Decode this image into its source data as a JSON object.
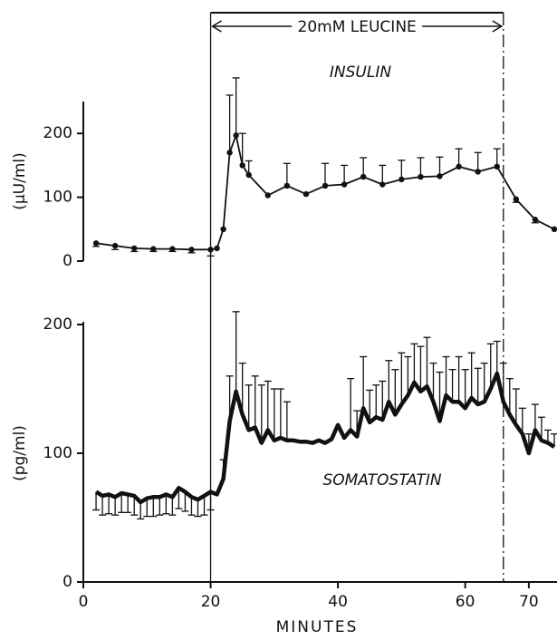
{
  "chart_data": [
    {
      "type": "line",
      "title": "INSULIN",
      "y_label": "(μU/ml)",
      "color": "#111",
      "line_width": 1.8,
      "markers": true,
      "annotation": {
        "text": "20mM LEUCINE",
        "xrange": [
          20,
          66
        ]
      },
      "xlim": [
        0,
        74
      ],
      "ylim": [
        0,
        250
      ],
      "yticks": [
        0,
        100,
        200
      ],
      "x": [
        2,
        5,
        8,
        11,
        14,
        17,
        20,
        21,
        22,
        23,
        24,
        25,
        26,
        29,
        32,
        35,
        38,
        41,
        44,
        47,
        50,
        53,
        56,
        59,
        62,
        65,
        68,
        71,
        74
      ],
      "values": [
        28,
        24,
        20,
        19,
        19,
        18,
        18,
        20,
        50,
        170,
        197,
        150,
        135,
        103,
        118,
        105,
        118,
        120,
        132,
        120,
        128,
        132,
        133,
        148,
        140,
        148,
        97,
        65,
        50
      ],
      "err_plus": [
        null,
        null,
        null,
        null,
        null,
        null,
        null,
        null,
        null,
        90,
        90,
        50,
        22,
        null,
        35,
        null,
        35,
        30,
        30,
        30,
        30,
        30,
        30,
        28,
        30,
        28,
        null,
        null,
        null
      ],
      "err_minus": [
        5,
        6,
        5,
        4,
        4,
        5,
        10,
        null,
        null,
        null,
        null,
        null,
        null,
        null,
        null,
        null,
        null,
        null,
        null,
        null,
        null,
        null,
        null,
        null,
        null,
        null,
        5,
        5,
        null
      ]
    },
    {
      "type": "line",
      "title": "SOMATOSTATIN",
      "y_label": "(pg/ml)",
      "x_label": "MINUTES",
      "color": "#111",
      "line_width": 4.5,
      "markers": false,
      "xlim": [
        0,
        74
      ],
      "ylim": [
        0,
        200
      ],
      "yticks": [
        0,
        100,
        200
      ],
      "xticks": [
        0,
        20,
        40,
        60,
        70
      ],
      "x": [
        2,
        3,
        4,
        5,
        6,
        7,
        8,
        9,
        10,
        11,
        12,
        13,
        14,
        15,
        16,
        17,
        18,
        19,
        20,
        21,
        22,
        23,
        24,
        25,
        26,
        27,
        28,
        29,
        30,
        31,
        32,
        33,
        34,
        35,
        36,
        37,
        38,
        39,
        40,
        41,
        42,
        43,
        44,
        45,
        46,
        47,
        48,
        49,
        50,
        51,
        52,
        53,
        54,
        55,
        56,
        57,
        58,
        59,
        60,
        61,
        62,
        63,
        64,
        65,
        66,
        67,
        68,
        69,
        70,
        71,
        72,
        73,
        74
      ],
      "values": [
        70,
        67,
        68,
        66,
        69,
        68,
        67,
        62,
        65,
        66,
        66,
        68,
        66,
        73,
        70,
        66,
        64,
        67,
        70,
        68,
        80,
        125,
        148,
        130,
        118,
        120,
        108,
        118,
        110,
        112,
        110,
        110,
        109,
        109,
        108,
        110,
        108,
        111,
        122,
        112,
        118,
        113,
        135,
        124,
        128,
        126,
        140,
        130,
        138,
        145,
        155,
        148,
        152,
        140,
        125,
        145,
        140,
        140,
        135,
        143,
        138,
        140,
        150,
        162,
        140,
        130,
        122,
        115,
        100,
        118,
        110,
        108,
        105
      ],
      "err_minus": [
        14,
        15,
        15,
        14,
        15,
        14,
        15,
        13,
        14,
        15,
        14,
        15,
        14,
        16,
        15,
        14,
        13,
        15,
        14,
        null,
        null,
        null,
        null,
        null,
        null,
        null,
        null,
        null,
        null,
        null,
        null,
        null,
        null,
        null,
        null,
        null,
        null,
        null,
        null,
        null,
        null,
        null,
        null,
        null,
        null,
        null,
        null,
        null,
        null,
        null,
        null,
        null,
        null,
        null,
        null,
        null,
        null,
        null,
        null,
        null,
        null,
        null,
        null,
        null,
        null,
        null,
        null,
        null,
        null,
        null,
        null,
        null,
        null
      ],
      "err_plus": [
        null,
        null,
        null,
        null,
        null,
        null,
        null,
        null,
        null,
        null,
        null,
        null,
        null,
        null,
        null,
        null,
        null,
        null,
        null,
        null,
        15,
        35,
        62,
        40,
        35,
        40,
        45,
        38,
        40,
        38,
        30,
        null,
        null,
        null,
        null,
        null,
        null,
        null,
        null,
        null,
        40,
        20,
        40,
        25,
        25,
        30,
        32,
        35,
        40,
        30,
        30,
        35,
        38,
        30,
        38,
        30,
        25,
        35,
        30,
        35,
        28,
        30,
        35,
        25,
        30,
        28,
        28,
        20,
        15,
        20,
        18,
        10,
        10
      ]
    }
  ]
}
